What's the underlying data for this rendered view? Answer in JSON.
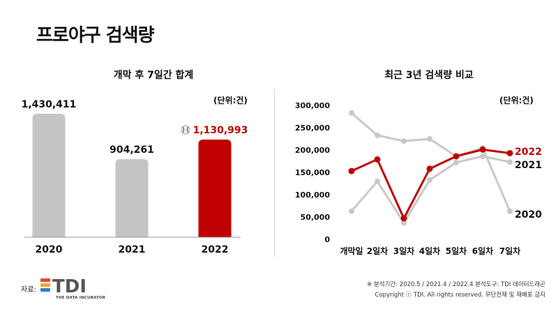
{
  "page": {
    "title": "프로야구 검색량",
    "source_label": "자료:",
    "logo_text": "TDI",
    "logo_tagline": "THE DATA INCUBATOR",
    "footer_analysis": "※ 분석기간: 2020.5 / 2021.4 / 2022.4    분석도구: TDI 데이터드래곤",
    "footer_copyright": "Copyright ⓒ TDI. All rights reserved. 무단전재 및 재배포 금지"
  },
  "colors": {
    "gray_bar": "#c4c4c4",
    "highlight": "#c00000",
    "gray_line": "#c8c8c8",
    "logo_red": "#e8453c",
    "logo_orange": "#f6a623",
    "logo_blue": "#2f80c8"
  },
  "chart_data": [
    {
      "type": "bar",
      "title": "개막 후 7일간 합계",
      "unit_label": "(단위:건)",
      "categories": [
        "2020",
        "2021",
        "2022"
      ],
      "values": [
        1430411,
        904261,
        1130993
      ],
      "value_labels": [
        "1,430,411",
        "904,261",
        "1,130,993"
      ],
      "highlight_index": 2,
      "ylim": [
        0,
        1430411
      ],
      "grid": false
    },
    {
      "type": "line",
      "title": "최근 3년 검색량 비교",
      "unit_label": "(단위:건)",
      "categories": [
        "개막일",
        "2일차",
        "3일차",
        "4일차",
        "5일차",
        "6일차",
        "7일차"
      ],
      "y_ticks": [
        0,
        50000,
        100000,
        150000,
        200000,
        250000,
        300000
      ],
      "y_tick_labels": [
        "0",
        "50,000",
        "100,000",
        "150,000",
        "200,000",
        "250,000",
        "300,000"
      ],
      "ylim": [
        0,
        300000
      ],
      "grid": false,
      "legend": "end-of-line labels",
      "series": [
        {
          "name": "2020",
          "values": [
            283000,
            233000,
            220000,
            225000,
            186000,
            205000,
            63000
          ]
        },
        {
          "name": "2021",
          "values": [
            63000,
            130000,
            37000,
            133000,
            172000,
            186000,
            173000
          ]
        },
        {
          "name": "2022",
          "values": [
            153000,
            179000,
            47000,
            158000,
            186000,
            201000,
            193000
          ]
        }
      ]
    }
  ]
}
